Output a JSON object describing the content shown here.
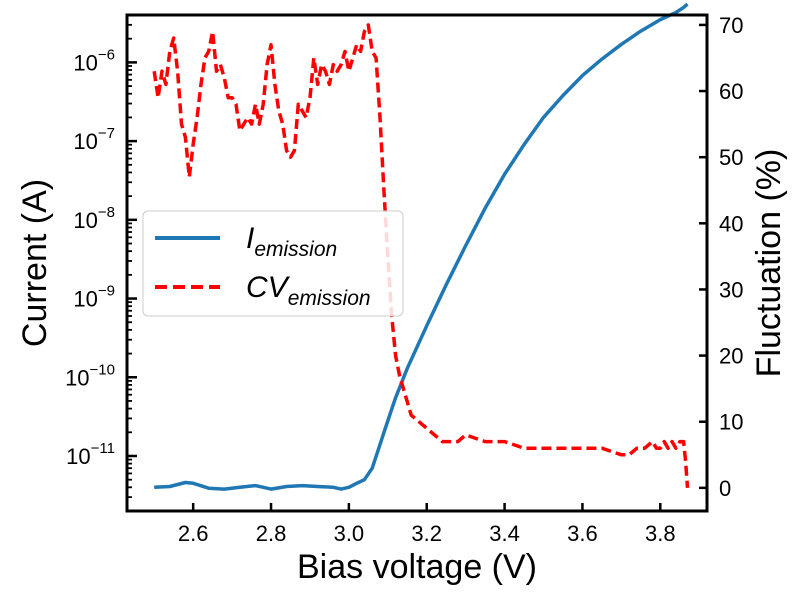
{
  "chart_data": {
    "type": "line",
    "xlabel": "Bias voltage (V)",
    "ylabel": "Current (A)",
    "y2label": "Fluctuation (%)",
    "xlim": [
      2.43,
      3.92
    ],
    "ylim": [
      2e-12,
      4e-06
    ],
    "yscale": "log",
    "y2lim": [
      -3.5,
      71.5
    ],
    "x_ticks": [
      "2.6",
      "2.8",
      "3.0",
      "3.2",
      "3.4",
      "3.6",
      "3.8"
    ],
    "y_ticks": [
      {
        "base": "10",
        "exp": "−6"
      },
      {
        "base": "10",
        "exp": "−7"
      },
      {
        "base": "10",
        "exp": "−8"
      },
      {
        "base": "10",
        "exp": "−9"
      },
      {
        "base": "10",
        "exp": "−10"
      },
      {
        "base": "10",
        "exp": "−11"
      }
    ],
    "y2_ticks": [
      "0",
      "10",
      "20",
      "30",
      "40",
      "50",
      "60",
      "70"
    ],
    "grid": false,
    "legend": {
      "position": "center-left",
      "entries": [
        {
          "main": "I",
          "sub": "emission"
        },
        {
          "main": "CV",
          "sub": "emission"
        }
      ]
    },
    "series": [
      {
        "axis": "left",
        "color": "#1f77b4",
        "style": "solid",
        "x": [
          2.5,
          2.54,
          2.58,
          2.6,
          2.64,
          2.68,
          2.72,
          2.76,
          2.8,
          2.84,
          2.88,
          2.92,
          2.96,
          2.98,
          3.0,
          3.02,
          3.04,
          3.06,
          3.08,
          3.1,
          3.12,
          3.15,
          3.2,
          3.25,
          3.3,
          3.35,
          3.4,
          3.45,
          3.5,
          3.55,
          3.6,
          3.65,
          3.7,
          3.75,
          3.8,
          3.84,
          3.86,
          3.87
        ],
        "y": [
          4e-12,
          4.1e-12,
          4.6e-12,
          4.5e-12,
          3.9e-12,
          3.8e-12,
          4e-12,
          4.2e-12,
          3.8e-12,
          4.1e-12,
          4.2e-12,
          4.1e-12,
          4e-12,
          3.8e-12,
          4e-12,
          4.5e-12,
          5e-12,
          7e-12,
          1.4e-11,
          2.8e-11,
          5.5e-11,
          1.3e-10,
          4.5e-10,
          1.5e-09,
          4.7e-09,
          1.4e-08,
          3.8e-08,
          9e-08,
          2e-07,
          3.8e-07,
          6.8e-07,
          1.1e-06,
          1.7e-06,
          2.5e-06,
          3.5e-06,
          4.3e-06,
          5e-06,
          5.5e-06
        ]
      },
      {
        "axis": "right",
        "color": "#ff0000",
        "style": "dashed",
        "x": [
          2.5,
          2.51,
          2.52,
          2.53,
          2.54,
          2.55,
          2.56,
          2.57,
          2.58,
          2.59,
          2.6,
          2.61,
          2.62,
          2.63,
          2.64,
          2.65,
          2.66,
          2.67,
          2.68,
          2.69,
          2.7,
          2.71,
          2.72,
          2.73,
          2.74,
          2.75,
          2.76,
          2.77,
          2.78,
          2.79,
          2.8,
          2.81,
          2.82,
          2.83,
          2.84,
          2.85,
          2.86,
          2.87,
          2.88,
          2.89,
          2.9,
          2.91,
          2.92,
          2.93,
          2.94,
          2.95,
          2.96,
          2.97,
          2.98,
          2.99,
          3.0,
          3.01,
          3.02,
          3.03,
          3.04,
          3.05,
          3.06,
          3.07,
          3.08,
          3.09,
          3.1,
          3.11,
          3.12,
          3.13,
          3.14,
          3.15,
          3.16,
          3.18,
          3.2,
          3.22,
          3.24,
          3.26,
          3.28,
          3.3,
          3.35,
          3.4,
          3.45,
          3.5,
          3.55,
          3.6,
          3.65,
          3.7,
          3.72,
          3.74,
          3.76,
          3.78,
          3.79,
          3.8,
          3.81,
          3.82,
          3.83,
          3.84,
          3.85,
          3.86,
          3.865,
          3.87
        ],
        "y": [
          63,
          59,
          63,
          61,
          66,
          68,
          63,
          55,
          53,
          47,
          52,
          56,
          61,
          65,
          66,
          69,
          63,
          64,
          62,
          59,
          59,
          58,
          54,
          55,
          56,
          55,
          58,
          55,
          58,
          64,
          67,
          61,
          57,
          55,
          51,
          50,
          51,
          58,
          57,
          56,
          59,
          65,
          61,
          64,
          63,
          61,
          64,
          63,
          64,
          66,
          63,
          65,
          67,
          66,
          69,
          70,
          66,
          65,
          56,
          45,
          35,
          26,
          20,
          17,
          15,
          13,
          11,
          10,
          9,
          8,
          7,
          7,
          7,
          8,
          7,
          7,
          6,
          6,
          6,
          6,
          6,
          5,
          5,
          6,
          6,
          7,
          6,
          6,
          7,
          6,
          7,
          6,
          7,
          7,
          4,
          0
        ]
      }
    ]
  }
}
